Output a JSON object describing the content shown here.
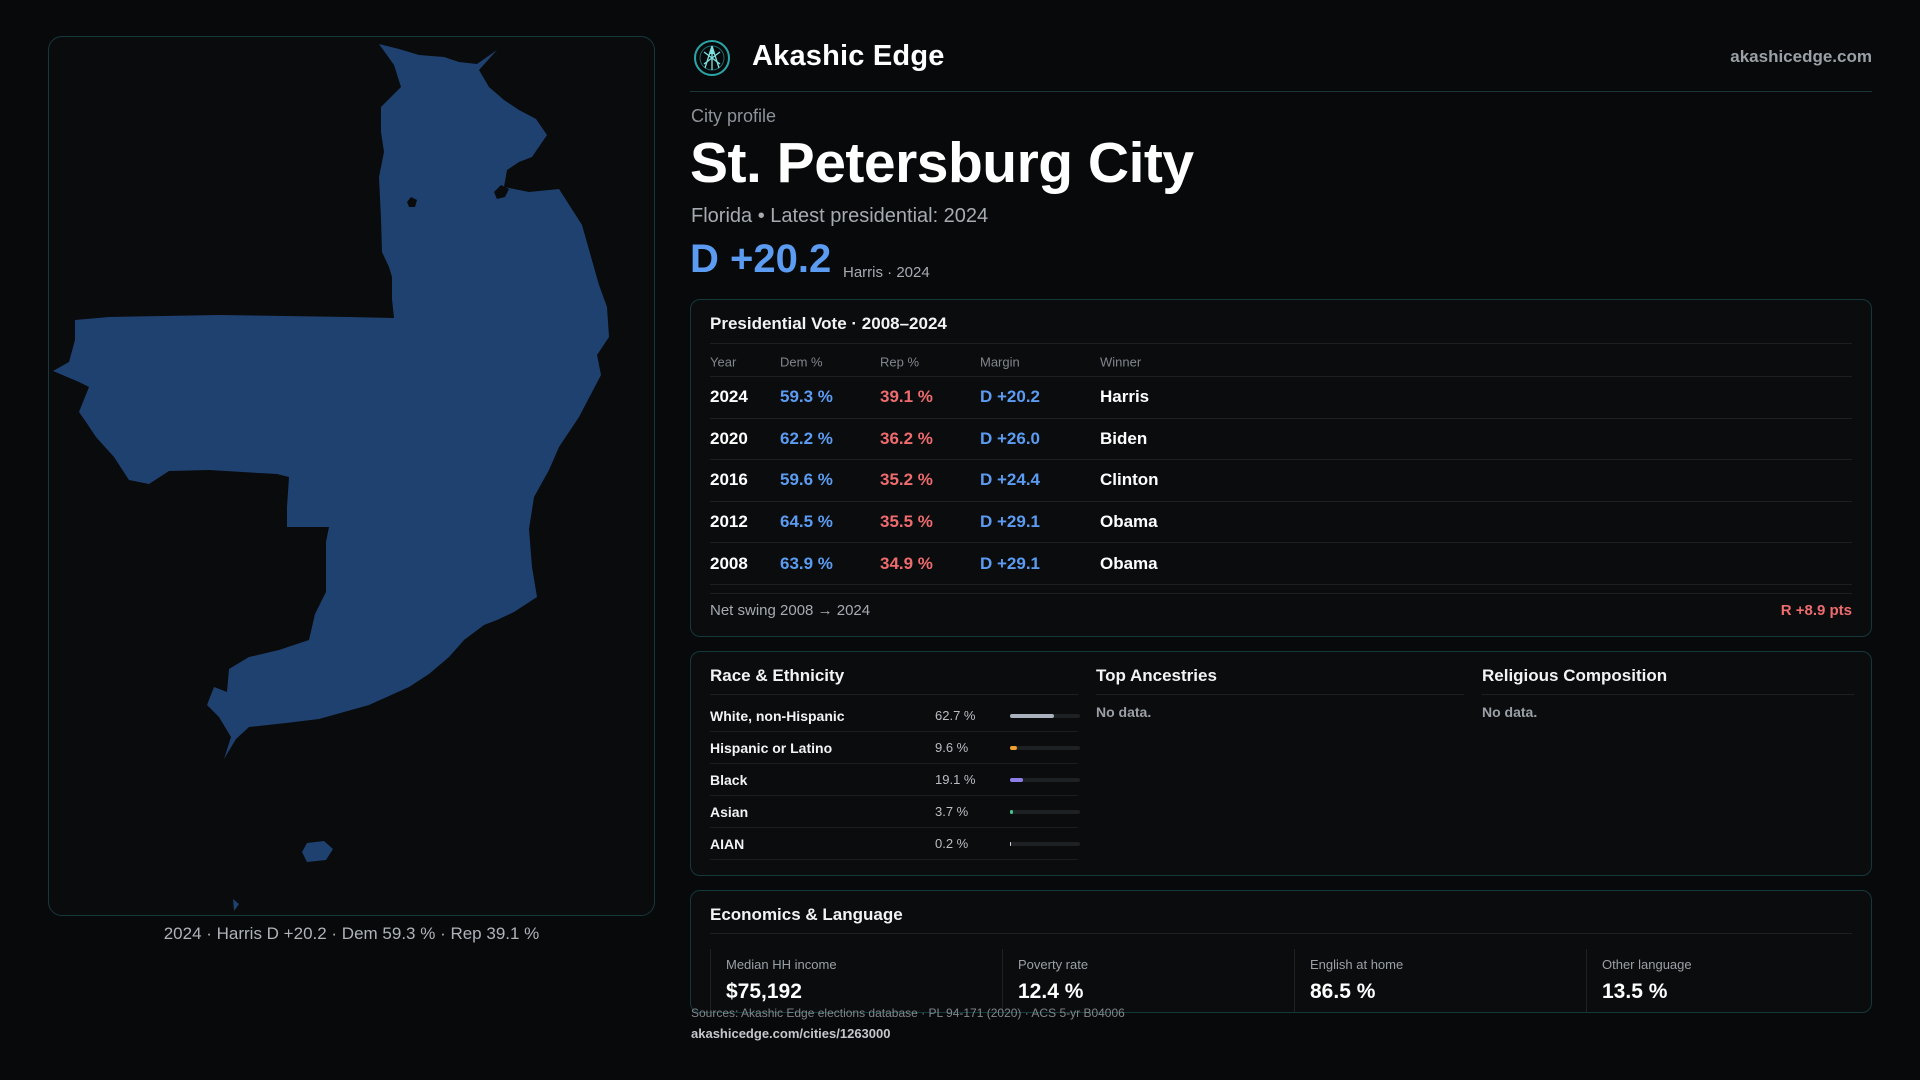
{
  "brand": {
    "name": "Akashic Edge",
    "site": "akashicedge.com",
    "logo_icon": "akashic-emblem-icon"
  },
  "colors": {
    "dem": "#5b9cf2",
    "rep": "#ee6b6e",
    "map_fill": "#1f4170",
    "accent": "#2aa6a8"
  },
  "profile": {
    "eyebrow": "City profile",
    "title": "St. Petersburg City",
    "subtitle": "Florida • Latest presidential: 2024",
    "margin": "D +20.2",
    "margin_note": "Harris · 2024"
  },
  "map": {
    "caption": "2024 · Harris D +20.2 · Dem 59.3 % · Rep 39.1 %"
  },
  "vote": {
    "title": "Presidential Vote · 2008–2024",
    "headers": {
      "year": "Year",
      "dem": "Dem %",
      "rep": "Rep %",
      "margin": "Margin",
      "winner": "Winner"
    },
    "rows": [
      {
        "year": "2024",
        "dem": "59.3 %",
        "rep": "39.1 %",
        "margin": "D +20.2",
        "winner": "Harris"
      },
      {
        "year": "2020",
        "dem": "62.2 %",
        "rep": "36.2 %",
        "margin": "D +26.0",
        "winner": "Biden"
      },
      {
        "year": "2016",
        "dem": "59.6 %",
        "rep": "35.2 %",
        "margin": "D +24.4",
        "winner": "Clinton"
      },
      {
        "year": "2012",
        "dem": "64.5 %",
        "rep": "35.5 %",
        "margin": "D +29.1",
        "winner": "Obama"
      },
      {
        "year": "2008",
        "dem": "63.9 %",
        "rep": "34.9 %",
        "margin": "D +29.1",
        "winner": "Obama"
      }
    ],
    "net_swing_label": "Net swing 2008 → 2024",
    "net_swing_value": "R +8.9 pts"
  },
  "race": {
    "title": "Race & Ethnicity",
    "rows": [
      {
        "label": "White, non-Hispanic",
        "pct": "62.7 %",
        "value": 62.7,
        "color": "#aab2bd"
      },
      {
        "label": "Hispanic or Latino",
        "pct": "9.6 %",
        "value": 9.6,
        "color": "#f0a030"
      },
      {
        "label": "Black",
        "pct": "19.1 %",
        "value": 19.1,
        "color": "#8f7ee8"
      },
      {
        "label": "Asian",
        "pct": "3.7 %",
        "value": 3.7,
        "color": "#3ec98a"
      },
      {
        "label": "AIAN",
        "pct": "0.2 %",
        "value": 0.2,
        "color": "#d0d4d8"
      }
    ]
  },
  "ancestries": {
    "title": "Top Ancestries",
    "empty": "No data."
  },
  "religion": {
    "title": "Religious Composition",
    "empty": "No data."
  },
  "economics": {
    "title": "Economics & Language",
    "items": [
      {
        "label": "Median HH income",
        "value": "$75,192"
      },
      {
        "label": "Poverty rate",
        "value": "12.4 %"
      },
      {
        "label": "English at home",
        "value": "86.5 %"
      },
      {
        "label": "Other language",
        "value": "13.5 %"
      }
    ]
  },
  "footer": {
    "sources": "Sources: Akashic Edge elections database · PL 94-171 (2020) · ACS 5-yr B04006",
    "url": "akashicedge.com/cities/1263000"
  }
}
